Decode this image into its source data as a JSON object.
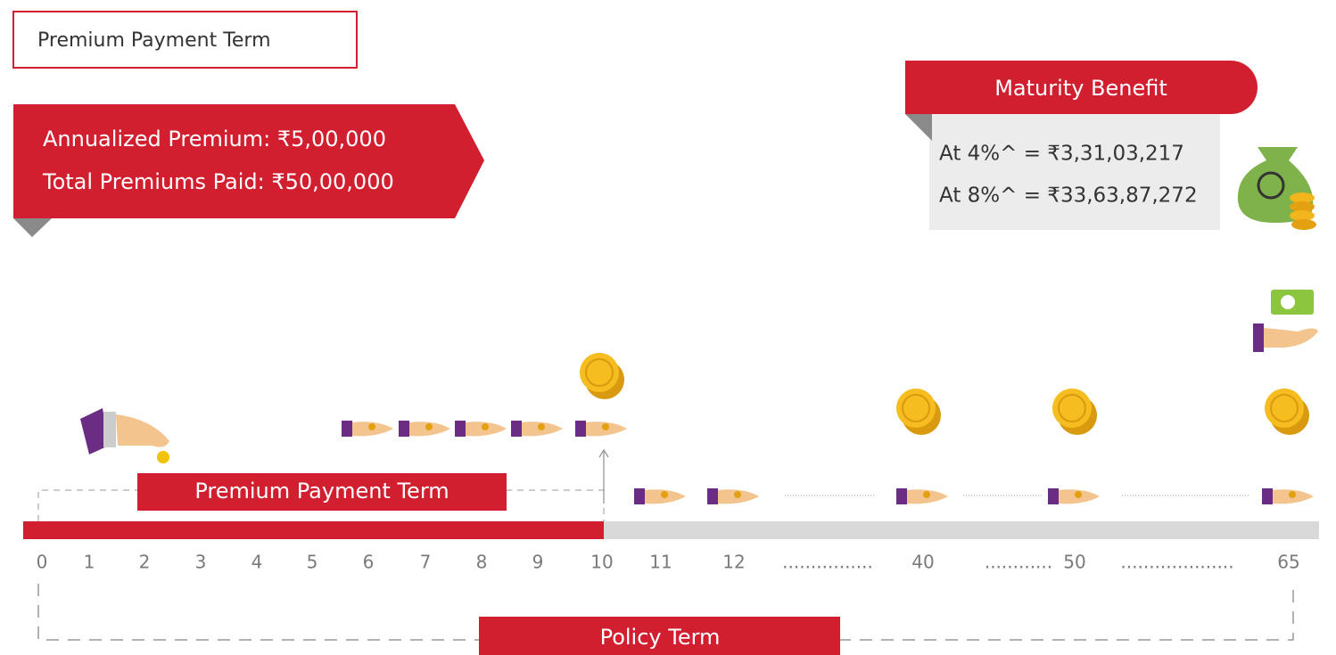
{
  "header": {
    "title": "Premium Payment Term"
  },
  "premium": {
    "annualized": "Annualized Premium: ₹5,00,000",
    "total": "Total Premiums Paid: ₹50,00,000"
  },
  "maturity": {
    "title": "Maturity Benefit",
    "lines": [
      "At 4%^ = ₹3,31,03,217",
      "At 8%^ = ₹33,63,87,272"
    ]
  },
  "timeline": {
    "premium_term_label": "Premium Payment Term",
    "policy_term_label": "Policy Term",
    "labels": [
      "0",
      "1",
      "2",
      "3",
      "4",
      "5",
      "6",
      "7",
      "8",
      "9",
      "10",
      "11",
      "12",
      "................",
      "40",
      "............",
      "50",
      "....................",
      "65"
    ]
  }
}
